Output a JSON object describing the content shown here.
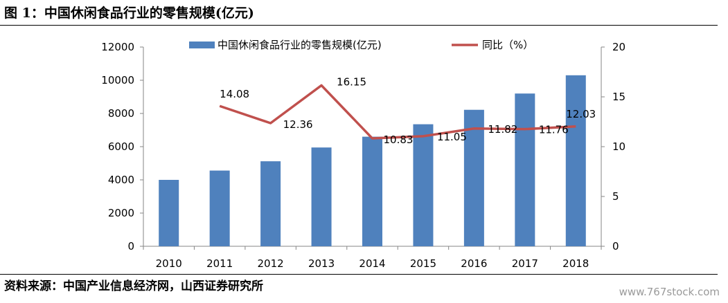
{
  "figure": {
    "title": "图 1：中国休闲食品行业的零售规模(亿元)",
    "source": "资料来源：中国产业信息经济网，山西证券研究所",
    "watermark": "www.767stock.com"
  },
  "chart_data": {
    "type": "bar",
    "categories": [
      "2010",
      "2011",
      "2012",
      "2013",
      "2014",
      "2015",
      "2016",
      "2017",
      "2018"
    ],
    "series": [
      {
        "name": "中国休闲食品行业的零售规模(亿元)",
        "type": "bar",
        "axis": "left",
        "color": "#4f81bd",
        "values": [
          4000,
          4560,
          5120,
          5950,
          6600,
          7350,
          8220,
          9200,
          10300
        ]
      },
      {
        "name": "同比（%）",
        "type": "line",
        "axis": "right",
        "color": "#c0504d",
        "values": [
          null,
          14.08,
          12.36,
          16.15,
          10.83,
          11.05,
          11.82,
          11.76,
          12.03
        ],
        "labels": [
          "",
          "14.08",
          "12.36",
          "16.15",
          "10.83",
          "11.05",
          "11.82",
          "11.76",
          "12.03"
        ]
      }
    ],
    "y_left": {
      "ylim": [
        0,
        12000
      ],
      "ticks": [
        "0",
        "2000",
        "4000",
        "6000",
        "8000",
        "10000",
        "12000"
      ]
    },
    "y_right": {
      "ylim": [
        0,
        20
      ],
      "ticks": [
        "0",
        "5",
        "10",
        "15",
        "20"
      ]
    },
    "grid": false,
    "legend_position": "top"
  }
}
